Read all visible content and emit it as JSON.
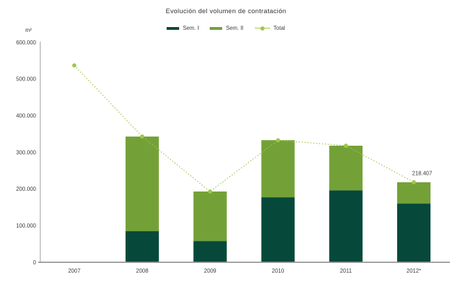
{
  "title": "Evolución del volumen de contratación",
  "y_axis_unit": "m²",
  "legend": {
    "sem1": "Sem. I",
    "sem2": "Sem. II",
    "total": "Total"
  },
  "colors": {
    "sem1": "#06493a",
    "sem2": "#74a137",
    "total_line": "#9fc84a",
    "axis_x": "#848484",
    "axis_y": "#9a9a9a",
    "text": "#404040"
  },
  "chart_data": {
    "type": "bar",
    "subtype": "stacked-bars-with-total-line",
    "title": "Evolución del volumen de contratación",
    "xlabel": "",
    "ylabel": "m²",
    "categories": [
      "2007",
      "2008",
      "2009",
      "2010",
      "2011",
      "2012*"
    ],
    "series": [
      {
        "name": "Sem. I",
        "type": "bar",
        "color_key": "sem1",
        "values": [
          null,
          85000,
          58000,
          177000,
          196000,
          160000
        ]
      },
      {
        "name": "Sem. II",
        "type": "bar",
        "color_key": "sem2",
        "values": [
          null,
          258000,
          135000,
          156000,
          122000,
          58407
        ]
      },
      {
        "name": "Total",
        "type": "line",
        "color_key": "total_line",
        "line_style": "dotted",
        "marker": "circle",
        "values": [
          537000,
          343000,
          193000,
          333000,
          318000,
          218407
        ]
      }
    ],
    "ylim": [
      0,
      600000
    ],
    "ytick_step": 100000,
    "ytick_labels": [
      "0",
      "100.000",
      "200.000",
      "300.000",
      "400.000",
      "500.000",
      "600.000"
    ],
    "grid": false,
    "legend_position": "top",
    "annotations": [
      {
        "x_index": 5,
        "series": "Total",
        "text": "218.407"
      }
    ]
  }
}
